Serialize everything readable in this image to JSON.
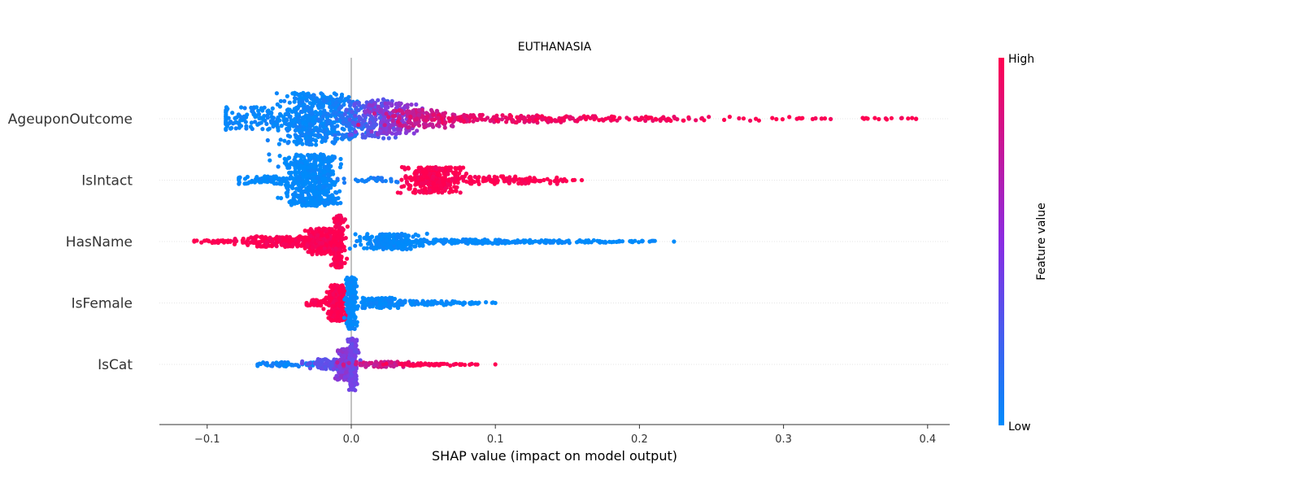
{
  "chart_data": {
    "type": "scatter",
    "subtype": "shap-beeswarm",
    "title": "EUTHANASIA",
    "xlabel": "SHAP value (impact on model output)",
    "xlim": [
      -0.133,
      0.415
    ],
    "x_ticks": [
      {
        "value": -0.1,
        "label": "−0.1"
      },
      {
        "value": 0.0,
        "label": "0.0"
      },
      {
        "value": 0.1,
        "label": "0.1"
      },
      {
        "value": 0.2,
        "label": "0.2"
      },
      {
        "value": 0.3,
        "label": "0.3"
      },
      {
        "value": 0.4,
        "label": "0.4"
      }
    ],
    "zero_line": 0.0,
    "colorbar": {
      "title": "Feature value",
      "high_label": "High",
      "low_label": "Low",
      "low_color": "#008bfb",
      "high_color": "#ff0051"
    },
    "features": [
      {
        "name": "AgeuponOutcome",
        "min": -0.087,
        "max": 0.392,
        "clusters": [
          {
            "center": -0.06,
            "spread": 0.022,
            "count": 160,
            "height": 0.45,
            "color": 0.02
          },
          {
            "center": -0.029,
            "spread": 0.01,
            "count": 300,
            "height": 1.0,
            "color": 0.03
          },
          {
            "center": -0.012,
            "spread": 0.008,
            "count": 140,
            "height": 0.8,
            "color": 0.05
          },
          {
            "center": 0.0,
            "spread": 0.006,
            "count": 90,
            "height": 0.7,
            "color": 0.15
          },
          {
            "center": 0.014,
            "spread": 0.007,
            "count": 150,
            "height": 0.75,
            "color": 0.35
          },
          {
            "center": 0.03,
            "spread": 0.009,
            "count": 170,
            "height": 0.6,
            "color": 0.55
          },
          {
            "center": 0.05,
            "spread": 0.012,
            "count": 120,
            "height": 0.35,
            "color": 0.8
          },
          {
            "center": 0.085,
            "spread": 0.022,
            "count": 100,
            "height": 0.15,
            "color": 0.9
          },
          {
            "center": 0.14,
            "spread": 0.025,
            "count": 80,
            "height": 0.1,
            "color": 0.95
          },
          {
            "center": 0.215,
            "spread": 0.03,
            "count": 60,
            "height": 0.08,
            "color": 0.97
          },
          {
            "center": 0.31,
            "spread": 0.012,
            "count": 14,
            "height": 0.03,
            "color": 1.0
          },
          {
            "center": 0.37,
            "spread": 0.014,
            "count": 14,
            "height": 0.03,
            "color": 1.0
          }
        ]
      },
      {
        "name": "IsIntact",
        "min": -0.078,
        "max": 0.16,
        "clusters": [
          {
            "center": -0.055,
            "spread": 0.014,
            "count": 90,
            "height": 0.15,
            "color": 0.0
          },
          {
            "center": -0.03,
            "spread": 0.008,
            "count": 420,
            "height": 1.0,
            "color": 0.0
          },
          {
            "center": -0.018,
            "spread": 0.004,
            "count": 120,
            "height": 0.9,
            "color": 0.0
          },
          {
            "center": 0.015,
            "spread": 0.01,
            "count": 30,
            "height": 0.1,
            "color": 0.1
          },
          {
            "center": 0.055,
            "spread": 0.01,
            "count": 260,
            "height": 0.5,
            "color": 1.0
          },
          {
            "center": 0.09,
            "spread": 0.022,
            "count": 110,
            "height": 0.15,
            "color": 1.0
          },
          {
            "center": 0.135,
            "spread": 0.012,
            "count": 25,
            "height": 0.04,
            "color": 1.0
          }
        ]
      },
      {
        "name": "HasName",
        "min": -0.109,
        "max": 0.224,
        "clusters": [
          {
            "center": -0.085,
            "spread": 0.014,
            "count": 40,
            "height": 0.05,
            "color": 1.0
          },
          {
            "center": -0.045,
            "spread": 0.015,
            "count": 200,
            "height": 0.2,
            "color": 1.0
          },
          {
            "center": -0.02,
            "spread": 0.006,
            "count": 200,
            "height": 0.5,
            "color": 1.0
          },
          {
            "center": -0.009,
            "spread": 0.002,
            "count": 180,
            "height": 1.0,
            "color": 1.0
          },
          {
            "center": 0.027,
            "spread": 0.01,
            "count": 200,
            "height": 0.3,
            "color": 0.0
          },
          {
            "center": 0.075,
            "spread": 0.025,
            "count": 150,
            "height": 0.08,
            "color": 0.0
          },
          {
            "center": 0.135,
            "spread": 0.022,
            "count": 80,
            "height": 0.05,
            "color": 0.0
          },
          {
            "center": 0.195,
            "spread": 0.012,
            "count": 20,
            "height": 0.03,
            "color": 0.0
          }
        ]
      },
      {
        "name": "IsFemale",
        "min": -0.031,
        "max": 0.1,
        "clusters": [
          {
            "center": -0.022,
            "spread": 0.005,
            "count": 50,
            "height": 0.12,
            "color": 1.0
          },
          {
            "center": -0.009,
            "spread": 0.004,
            "count": 260,
            "height": 0.7,
            "color": 1.0
          },
          {
            "center": 0.0,
            "spread": 0.002,
            "count": 160,
            "height": 1.0,
            "color": 0.0
          },
          {
            "center": 0.018,
            "spread": 0.008,
            "count": 120,
            "height": 0.2,
            "color": 0.0
          },
          {
            "center": 0.05,
            "spread": 0.016,
            "count": 70,
            "height": 0.08,
            "color": 0.0
          },
          {
            "center": 0.085,
            "spread": 0.008,
            "count": 15,
            "height": 0.03,
            "color": 0.0
          }
        ]
      },
      {
        "name": "IsCat",
        "min": -0.065,
        "max": 0.1,
        "clusters": [
          {
            "center": -0.045,
            "spread": 0.01,
            "count": 60,
            "height": 0.08,
            "color": 0.05
          },
          {
            "center": -0.015,
            "spread": 0.008,
            "count": 100,
            "height": 0.2,
            "color": 0.4
          },
          {
            "center": -0.003,
            "spread": 0.003,
            "count": 240,
            "height": 0.6,
            "color": 0.55
          },
          {
            "center": 0.001,
            "spread": 0.0015,
            "count": 140,
            "height": 1.0,
            "color": 0.45
          },
          {
            "center": 0.02,
            "spread": 0.01,
            "count": 80,
            "height": 0.1,
            "color": 0.8
          },
          {
            "center": 0.05,
            "spread": 0.012,
            "count": 60,
            "height": 0.05,
            "color": 1.0
          },
          {
            "center": 0.078,
            "spread": 0.008,
            "count": 12,
            "height": 0.02,
            "color": 1.0
          }
        ]
      }
    ]
  }
}
